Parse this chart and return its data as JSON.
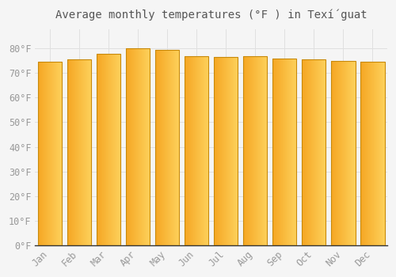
{
  "categories": [
    "Jan",
    "Feb",
    "Mar",
    "Apr",
    "May",
    "Jun",
    "Jul",
    "Aug",
    "Sep",
    "Oct",
    "Nov",
    "Dec"
  ],
  "values": [
    74.5,
    75.5,
    78.0,
    80.0,
    79.5,
    77.0,
    76.5,
    77.0,
    76.0,
    75.5,
    75.0,
    74.5
  ],
  "title": "Average monthly temperatures (°F ) in Texí́guat",
  "bar_color_left": "#F5A623",
  "bar_color_right": "#FDD05A",
  "bar_edge_color": "#C8890A",
  "background_color": "#f5f5f5",
  "grid_color": "#e0e0e0",
  "text_color": "#999999",
  "ylim": [
    0,
    88
  ],
  "ytick_values": [
    0,
    10,
    20,
    30,
    40,
    50,
    60,
    70,
    80
  ],
  "ytick_labels": [
    "0°F",
    "10°F",
    "20°F",
    "30°F",
    "40°F",
    "50°F",
    "60°F",
    "70°F",
    "80°F"
  ],
  "title_fontsize": 10,
  "tick_fontsize": 8.5
}
